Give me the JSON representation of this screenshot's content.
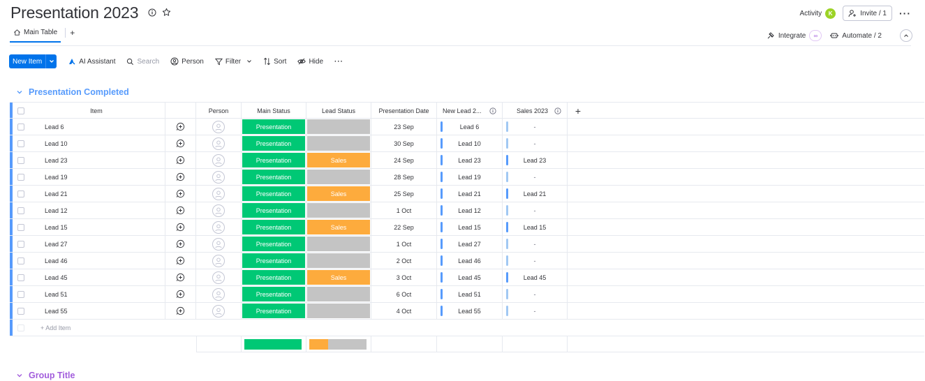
{
  "header": {
    "title": "Presentation 2023",
    "activity_label": "Activity",
    "activity_avatar": "K",
    "invite_label": "Invite / 1"
  },
  "tabs": {
    "main_label": "Main Table",
    "add_label": "+",
    "integrate_label": "Integrate",
    "automate_label": "Automate / 2"
  },
  "toolbar": {
    "new_item": "New Item",
    "ai_assistant": "AI Assistant",
    "search_placeholder": "Search",
    "person": "Person",
    "filter": "Filter",
    "sort": "Sort",
    "hide": "Hide"
  },
  "colors": {
    "accent": "#0073ea",
    "group1": "#579bfc",
    "group2": "#a25ddc",
    "done_green": "#00c875",
    "sales_orange": "#fdab3d",
    "empty_gray": "#c4c4c4",
    "link_blue": "#579bfc",
    "link_light": "#a1c8f3"
  },
  "group1": {
    "title": "Presentation Completed",
    "columns": {
      "item": "Item",
      "person": "Person",
      "main_status": "Main Status",
      "lead_status": "Lead Status",
      "presentation_date": "Presentation Date",
      "new_lead": "New Lead 2...",
      "sales": "Sales 2023",
      "add": "+"
    },
    "rows": [
      {
        "item": "Lead 6",
        "status": "Presentation",
        "lead": "",
        "date": "23 Sep",
        "new_lead": "Lead 6",
        "sales": "-"
      },
      {
        "item": "Lead 10",
        "status": "Presentation",
        "lead": "",
        "date": "30 Sep",
        "new_lead": "Lead 10",
        "sales": "-"
      },
      {
        "item": "Lead 23",
        "status": "Presentation",
        "lead": "Sales",
        "date": "24 Sep",
        "new_lead": "Lead 23",
        "sales": "Lead 23"
      },
      {
        "item": "Lead 19",
        "status": "Presentation",
        "lead": "",
        "date": "28 Sep",
        "new_lead": "Lead 19",
        "sales": "-"
      },
      {
        "item": "Lead 21",
        "status": "Presentation",
        "lead": "Sales",
        "date": "25 Sep",
        "new_lead": "Lead 21",
        "sales": "Lead 21"
      },
      {
        "item": "Lead 12",
        "status": "Presentation",
        "lead": "",
        "date": "1 Oct",
        "new_lead": "Lead 12",
        "sales": "-"
      },
      {
        "item": "Lead 15",
        "status": "Presentation",
        "lead": "Sales",
        "date": "22 Sep",
        "new_lead": "Lead 15",
        "sales": "Lead 15"
      },
      {
        "item": "Lead 27",
        "status": "Presentation",
        "lead": "",
        "date": "1 Oct",
        "new_lead": "Lead 27",
        "sales": "-"
      },
      {
        "item": "Lead 46",
        "status": "Presentation",
        "lead": "",
        "date": "2 Oct",
        "new_lead": "Lead 46",
        "sales": "-"
      },
      {
        "item": "Lead 45",
        "status": "Presentation",
        "lead": "Sales",
        "date": "3 Oct",
        "new_lead": "Lead 45",
        "sales": "Lead 45"
      },
      {
        "item": "Lead 51",
        "status": "Presentation",
        "lead": "",
        "date": "6 Oct",
        "new_lead": "Lead 51",
        "sales": "-"
      },
      {
        "item": "Lead 55",
        "status": "Presentation",
        "lead": "",
        "date": "4 Oct",
        "new_lead": "Lead 55",
        "sales": "-"
      }
    ],
    "add_item_label": "+ Add Item",
    "summary": {
      "main_status_done_fraction": 1.0,
      "lead_status_sales_fraction": 0.333
    }
  },
  "group2": {
    "title": "Group Title"
  }
}
